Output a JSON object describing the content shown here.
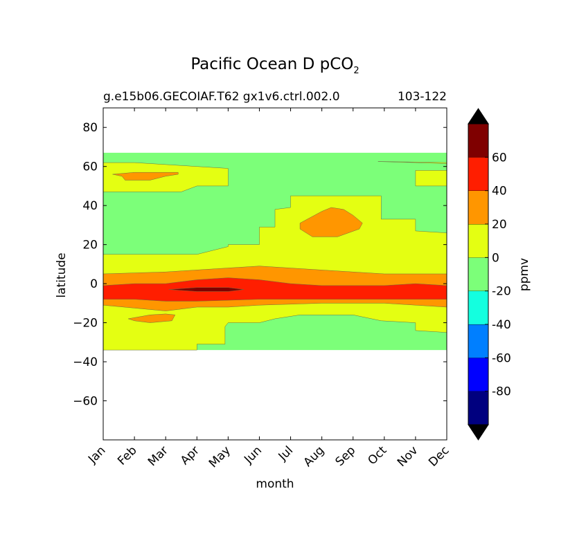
{
  "chart_data": {
    "type": "heatmap",
    "plot_style": "filled-contour",
    "title": "Pacific Ocean D pCO",
    "title_subscript": "2",
    "subtitle_left": "g.e15b06.GECOIAF.T62 gx1v6.ctrl.002.0",
    "subtitle_right": "103-122",
    "xlabel": "month",
    "ylabel": "latitude",
    "colorbar_label": "ppmv",
    "x_categories": [
      "Jan",
      "Feb",
      "Mar",
      "Apr",
      "May",
      "Jun",
      "Jul",
      "Aug",
      "Sep",
      "Oct",
      "Nov",
      "Dec"
    ],
    "ylim": [
      -80,
      90
    ],
    "y_ticks": [
      80,
      60,
      40,
      20,
      0,
      -20,
      -40,
      -60
    ],
    "y_tick_labels": [
      "80",
      "60",
      "40",
      "20",
      "0",
      "−20",
      "−40",
      "−60"
    ],
    "data_lat_range": [
      -34,
      67
    ],
    "contour_levels": [
      -100,
      -80,
      -60,
      -40,
      -20,
      0,
      20,
      40,
      60,
      80
    ],
    "colorbar_tick_values": [
      60,
      40,
      20,
      0,
      -20,
      -40,
      -60,
      -80
    ],
    "colorbar_tick_labels": [
      "60",
      "40",
      "20",
      "0",
      "-20",
      "-40",
      "-60",
      "-80"
    ],
    "colorbar_extend": "both",
    "colors": {
      "under": "#000000",
      "over": "#000000",
      "bands": [
        "#00007f",
        "#0000ff",
        "#007fff",
        "#14ffdf",
        "#7cff79",
        "#e4ff12",
        "#ff9600",
        "#ff1e00",
        "#7f0000"
      ]
    },
    "regions": [
      {
        "band": 4,
        "points": [
          [
            0,
            67
          ],
          [
            11,
            67
          ],
          [
            11,
            -34
          ],
          [
            0,
            -34
          ]
        ]
      },
      {
        "band": 5,
        "points": [
          [
            0,
            47
          ],
          [
            2.5,
            47
          ],
          [
            3,
            50
          ],
          [
            4,
            50
          ],
          [
            4,
            59
          ],
          [
            3,
            60
          ],
          [
            2,
            61
          ],
          [
            1,
            62
          ],
          [
            0,
            62
          ]
        ]
      },
      {
        "band": 5,
        "points": [
          [
            8.8,
            62.5
          ],
          [
            10,
            62
          ],
          [
            11,
            61.5
          ],
          [
            11,
            62
          ],
          [
            9,
            62.5
          ]
        ]
      },
      {
        "band": 5,
        "points": [
          [
            10,
            58
          ],
          [
            11,
            58
          ],
          [
            11,
            50
          ],
          [
            10,
            50
          ]
        ]
      },
      {
        "band": 5,
        "points": [
          [
            0,
            15
          ],
          [
            3,
            15
          ],
          [
            4,
            19
          ],
          [
            4,
            20
          ],
          [
            5,
            20
          ],
          [
            5,
            29
          ],
          [
            5.5,
            29
          ],
          [
            5.5,
            38
          ],
          [
            6,
            39
          ],
          [
            6,
            45
          ],
          [
            8.9,
            45
          ],
          [
            8.9,
            33
          ],
          [
            10,
            33
          ],
          [
            10,
            27
          ],
          [
            11,
            26
          ],
          [
            11,
            -25
          ],
          [
            10,
            -24
          ],
          [
            10,
            -20
          ],
          [
            8.9,
            -19
          ],
          [
            8,
            -16
          ],
          [
            6.3,
            -16
          ],
          [
            5.5,
            -18
          ],
          [
            5,
            -20
          ],
          [
            4,
            -20
          ],
          [
            3.9,
            -22
          ],
          [
            3.9,
            -31
          ],
          [
            3,
            -31
          ],
          [
            3,
            -34
          ],
          [
            0,
            -34
          ]
        ]
      },
      {
        "band": 6,
        "points": [
          [
            0.3,
            56
          ],
          [
            1,
            57
          ],
          [
            2.4,
            57
          ],
          [
            2.4,
            56
          ],
          [
            2,
            55
          ],
          [
            1.5,
            53
          ],
          [
            0.7,
            53
          ],
          [
            0.6,
            55
          ]
        ]
      },
      {
        "band": 6,
        "points": [
          [
            6.3,
            31
          ],
          [
            7,
            37
          ],
          [
            7.3,
            39
          ],
          [
            7.7,
            38
          ],
          [
            8,
            35
          ],
          [
            8.3,
            31
          ],
          [
            8.2,
            28
          ],
          [
            7.5,
            24
          ],
          [
            6.7,
            24
          ],
          [
            6.3,
            28
          ]
        ]
      },
      {
        "band": 6,
        "points": [
          [
            0,
            5
          ],
          [
            2,
            6
          ],
          [
            4,
            8
          ],
          [
            5,
            9
          ],
          [
            7,
            7
          ],
          [
            9,
            5
          ],
          [
            11,
            5
          ],
          [
            11,
            -12
          ],
          [
            9,
            -10
          ],
          [
            7,
            -10
          ],
          [
            5,
            -11
          ],
          [
            4,
            -12
          ],
          [
            3,
            -12
          ],
          [
            2,
            -14
          ],
          [
            0,
            -11
          ]
        ]
      },
      {
        "band": 6,
        "points": [
          [
            0.8,
            -18
          ],
          [
            1.5,
            -16
          ],
          [
            2,
            -15.5
          ],
          [
            2.3,
            -16
          ],
          [
            2.2,
            -19
          ],
          [
            1.5,
            -20
          ],
          [
            1,
            -19
          ]
        ]
      },
      {
        "band": 7,
        "points": [
          [
            0,
            -1
          ],
          [
            1,
            0
          ],
          [
            2,
            0
          ],
          [
            3,
            2
          ],
          [
            4,
            3
          ],
          [
            5,
            2
          ],
          [
            6,
            0
          ],
          [
            7,
            -1
          ],
          [
            8,
            -1
          ],
          [
            9,
            -1
          ],
          [
            10,
            0
          ],
          [
            11,
            -1
          ],
          [
            11,
            -8
          ],
          [
            9,
            -8
          ],
          [
            7,
            -8
          ],
          [
            5,
            -8
          ],
          [
            3,
            -9
          ],
          [
            2,
            -9
          ],
          [
            1,
            -8
          ],
          [
            0,
            -8
          ]
        ]
      },
      {
        "band": 8,
        "points": [
          [
            2.1,
            -3
          ],
          [
            3,
            -2
          ],
          [
            4,
            -2
          ],
          [
            4.5,
            -3
          ],
          [
            4,
            -4
          ],
          [
            3,
            -4
          ],
          [
            2.1,
            -3
          ]
        ]
      }
    ]
  }
}
